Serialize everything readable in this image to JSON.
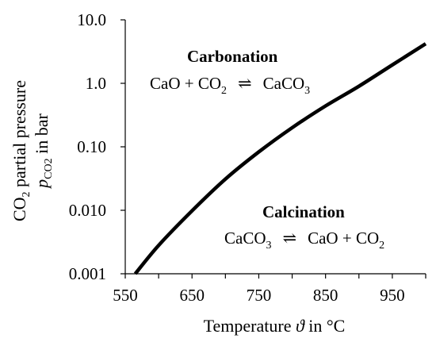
{
  "chart_data": {
    "type": "line",
    "xlabel": {
      "parts": [
        "Temperature ",
        "ϑ",
        " in °C"
      ]
    },
    "ylabel": {
      "line1": [
        "CO",
        "2",
        " partial pressure"
      ],
      "line2": [
        "p",
        "CO2",
        " in bar"
      ]
    },
    "x_ticks": [
      550,
      650,
      750,
      850,
      950
    ],
    "xlim": [
      550,
      1000
    ],
    "y_scale": "log",
    "y_ticks": [
      {
        "value": 0.001,
        "label": "0.001"
      },
      {
        "value": 0.01,
        "label": "0.010"
      },
      {
        "value": 0.1,
        "label": "0.10"
      },
      {
        "value": 1.0,
        "label": "1.0"
      },
      {
        "value": 10.0,
        "label": "10.0"
      }
    ],
    "ylim": [
      0.001,
      10
    ],
    "grid": false,
    "series": [
      {
        "color": "#000000",
        "x": [
          565,
          600,
          650,
          700,
          750,
          800,
          850,
          900,
          950,
          1000
        ],
        "y": [
          0.001,
          0.0028,
          0.0098,
          0.031,
          0.083,
          0.2,
          0.44,
          0.9,
          1.95,
          4.2
        ]
      }
    ],
    "annotations": [
      {
        "name": "carbonation",
        "title": "Carbonation",
        "equation": {
          "lhs": [
            "CaO + CO",
            "2"
          ],
          "arrow": "⇌",
          "rhs": [
            "CaCO",
            "3"
          ]
        }
      },
      {
        "name": "calcination",
        "title": "Calcination",
        "equation": {
          "lhs": [
            "CaCO",
            "3"
          ],
          "arrow": "⇌",
          "rhs": [
            "CaO + CO",
            "2"
          ]
        }
      }
    ]
  }
}
